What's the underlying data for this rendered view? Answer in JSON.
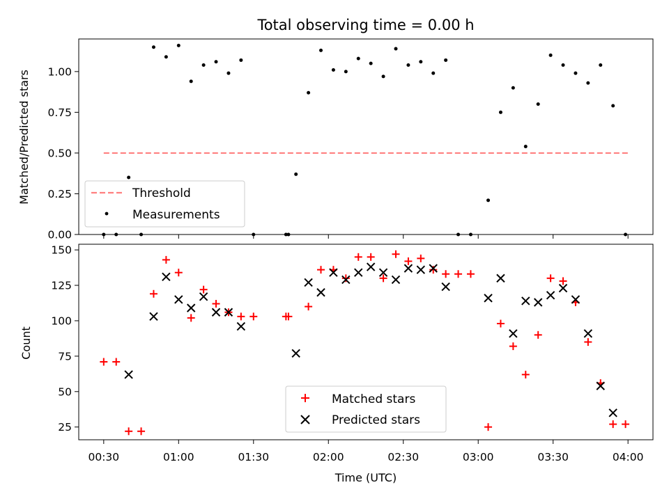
{
  "chart_data": [
    {
      "type": "scatter",
      "title": "Total observing time = 0.00 h",
      "xlabel": "",
      "ylabel": "Matched/Predicted stars",
      "xlim": [
        "00:20",
        "04:10"
      ],
      "ylim": [
        0,
        1.2
      ],
      "yticks": [
        0.0,
        0.25,
        0.5,
        0.75,
        1.0
      ],
      "ytick_labels": [
        "0.00",
        "0.25",
        "0.50",
        "0.75",
        "1.00"
      ],
      "legend_position": "lower-left",
      "threshold": {
        "name": "Threshold",
        "value": 0.5,
        "x": [
          "00:30",
          "04:00"
        ],
        "color": "#ff7f7f"
      },
      "series": [
        {
          "name": "Measurements",
          "color": "#000000",
          "marker": "dot",
          "x": [
            "00:30",
            "00:35",
            "00:40",
            "00:45",
            "00:50",
            "00:55",
            "01:00",
            "01:05",
            "01:10",
            "01:15",
            "01:20",
            "01:25",
            "01:30",
            "01:43",
            "01:44",
            "01:47",
            "01:52",
            "01:57",
            "02:02",
            "02:07",
            "02:12",
            "02:17",
            "02:22",
            "02:27",
            "02:32",
            "02:37",
            "02:42",
            "02:47",
            "02:52",
            "02:57",
            "03:04",
            "03:09",
            "03:14",
            "03:19",
            "03:24",
            "03:29",
            "03:34",
            "03:39",
            "03:44",
            "03:49",
            "03:54",
            "03:59"
          ],
          "y": [
            0.0,
            0.0,
            0.35,
            0.0,
            1.15,
            1.09,
            1.16,
            0.94,
            1.04,
            1.06,
            0.99,
            1.07,
            0.0,
            0.0,
            0.0,
            0.37,
            0.87,
            1.13,
            1.01,
            1.0,
            1.08,
            1.05,
            0.97,
            1.14,
            1.04,
            1.06,
            0.99,
            1.07,
            0.0,
            0.0,
            0.21,
            0.75,
            0.9,
            0.54,
            0.8,
            1.1,
            1.04,
            0.99,
            0.93,
            1.04,
            0.79,
            0.0
          ]
        }
      ]
    },
    {
      "type": "scatter",
      "title": "",
      "xlabel": "Time (UTC)",
      "ylabel": "Count",
      "xlim": [
        "00:20",
        "04:10"
      ],
      "ylim": [
        16,
        154
      ],
      "xticks": [
        "00:30",
        "01:00",
        "01:30",
        "02:00",
        "02:30",
        "03:00",
        "03:30",
        "04:00"
      ],
      "yticks": [
        25,
        50,
        75,
        100,
        125,
        150
      ],
      "legend_position": "bottom-center",
      "series": [
        {
          "name": "Matched stars",
          "color": "#ff0000",
          "marker": "plus",
          "x": [
            "00:30",
            "00:35",
            "00:40",
            "00:45",
            "00:50",
            "00:55",
            "01:00",
            "01:05",
            "01:10",
            "01:15",
            "01:20",
            "01:25",
            "01:30",
            "01:43",
            "01:44",
            "01:52",
            "01:57",
            "02:02",
            "02:07",
            "02:12",
            "02:17",
            "02:22",
            "02:27",
            "02:32",
            "02:37",
            "02:42",
            "02:47",
            "02:52",
            "02:57",
            "03:04",
            "03:09",
            "03:14",
            "03:19",
            "03:24",
            "03:29",
            "03:34",
            "03:39",
            "03:44",
            "03:49",
            "03:54",
            "03:59"
          ],
          "y": [
            71,
            71,
            22,
            22,
            119,
            143,
            134,
            102,
            122,
            112,
            106,
            103,
            103,
            103,
            103,
            110,
            136,
            136,
            130,
            145,
            145,
            130,
            147,
            142,
            144,
            136,
            133,
            133,
            133,
            25,
            98,
            82,
            62,
            90,
            130,
            128,
            113,
            85,
            56,
            27,
            27
          ]
        },
        {
          "name": "Predicted stars",
          "color": "#000000",
          "marker": "x",
          "x": [
            "00:40",
            "00:50",
            "00:55",
            "01:00",
            "01:05",
            "01:10",
            "01:15",
            "01:20",
            "01:25",
            "01:47",
            "01:52",
            "01:57",
            "02:02",
            "02:07",
            "02:12",
            "02:17",
            "02:22",
            "02:27",
            "02:32",
            "02:37",
            "02:42",
            "02:47",
            "03:04",
            "03:09",
            "03:14",
            "03:19",
            "03:24",
            "03:29",
            "03:34",
            "03:39",
            "03:44",
            "03:49",
            "03:54"
          ],
          "y": [
            62,
            103,
            131,
            115,
            109,
            117,
            106,
            106,
            96,
            77,
            127,
            120,
            134,
            129,
            134,
            138,
            134,
            129,
            137,
            136,
            137,
            124,
            116,
            130,
            91,
            114,
            113,
            118,
            123,
            115,
            91,
            54,
            35
          ]
        }
      ]
    }
  ]
}
